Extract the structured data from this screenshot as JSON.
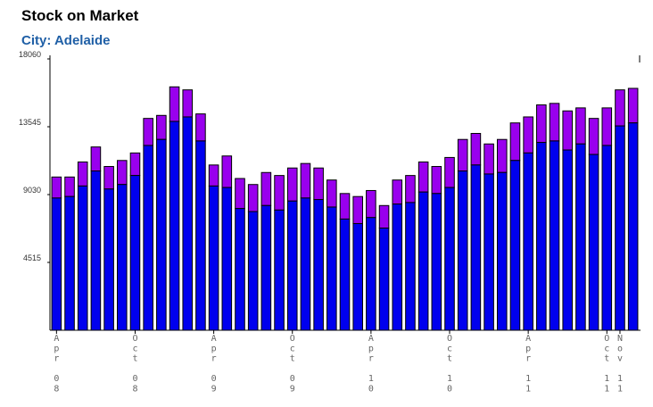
{
  "header": {
    "title": "Stock on Market",
    "subtitle": "City: Adelaide"
  },
  "chart_data": {
    "type": "bar",
    "stacked": true,
    "y_ticks": [
      "18060",
      "13545",
      "9030",
      "4515"
    ],
    "ylim": [
      0,
      18060
    ],
    "grid": false,
    "colors": {
      "bottom": "#0000ee",
      "top": "#9900ee",
      "outline": "#000000"
    },
    "x_tick_labels": [
      {
        "bar": 0,
        "label": "Apr 08"
      },
      {
        "bar": 6,
        "label": "Oct 08"
      },
      {
        "bar": 12,
        "label": "Apr 09"
      },
      {
        "bar": 18,
        "label": "Oct 09"
      },
      {
        "bar": 24,
        "label": "Apr 10"
      },
      {
        "bar": 30,
        "label": "Oct 10"
      },
      {
        "bar": 36,
        "label": "Apr 11"
      },
      {
        "bar": 42,
        "label": "Oct 11"
      },
      {
        "bar": 43,
        "label": "Nov 11"
      }
    ],
    "series": [
      {
        "values": [
          8800,
          8900,
          9600,
          10600,
          9400,
          9700,
          10300,
          12300,
          12700,
          13900,
          14200,
          12600,
          9600,
          9500,
          8100,
          7900,
          8300,
          8000,
          8600,
          8800,
          8700,
          8200,
          7400,
          7100,
          7500,
          6800,
          8400,
          8500,
          9200,
          9100,
          9500,
          10600,
          11000,
          10400,
          10500,
          11300,
          11800,
          12500,
          12600,
          12000,
          12400,
          11700,
          12300,
          13600,
          13800
        ]
      },
      {
        "values": [
          1400,
          1300,
          1600,
          1600,
          1500,
          1600,
          1500,
          1800,
          1600,
          2300,
          1800,
          1800,
          1400,
          2100,
          2000,
          1800,
          2200,
          2300,
          2200,
          2300,
          2100,
          1800,
          1700,
          1800,
          1800,
          1500,
          1600,
          1800,
          2000,
          1800,
          2000,
          2100,
          2100,
          2000,
          2200,
          2500,
          2400,
          2500,
          2500,
          2600,
          2400,
          2400,
          2500,
          2400,
          2300
        ]
      }
    ]
  }
}
